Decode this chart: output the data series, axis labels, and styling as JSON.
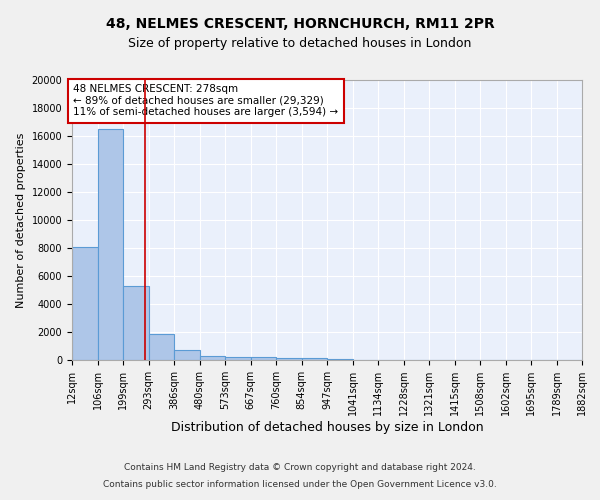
{
  "title1": "48, NELMES CRESCENT, HORNCHURCH, RM11 2PR",
  "title2": "Size of property relative to detached houses in London",
  "xlabel": "Distribution of detached houses by size in London",
  "ylabel": "Number of detached properties",
  "footnote1": "Contains HM Land Registry data © Crown copyright and database right 2024.",
  "footnote2": "Contains public sector information licensed under the Open Government Licence v3.0.",
  "bar_heights": [
    8100,
    16500,
    5300,
    1850,
    700,
    320,
    220,
    190,
    150,
    130,
    50,
    30,
    20,
    15,
    10,
    8,
    5,
    4,
    3,
    2
  ],
  "bin_edges": [
    12,
    106,
    199,
    293,
    386,
    480,
    573,
    667,
    760,
    854,
    947,
    1041,
    1134,
    1228,
    1321,
    1415,
    1508,
    1602,
    1695,
    1789,
    1882
  ],
  "x_tick_labels": [
    "12sqm",
    "106sqm",
    "199sqm",
    "293sqm",
    "386sqm",
    "480sqm",
    "573sqm",
    "667sqm",
    "760sqm",
    "854sqm",
    "947sqm",
    "1041sqm",
    "1134sqm",
    "1228sqm",
    "1321sqm",
    "1415sqm",
    "1508sqm",
    "1602sqm",
    "1695sqm",
    "1789sqm",
    "1882sqm"
  ],
  "bar_color": "#aec6e8",
  "bar_edge_color": "#5b9bd5",
  "red_line_x": 278,
  "annotation_line1": "48 NELMES CRESCENT: 278sqm",
  "annotation_line2": "← 89% of detached houses are smaller (29,329)",
  "annotation_line3": "11% of semi-detached houses are larger (3,594) →",
  "annotation_box_color": "#ffffff",
  "annotation_box_edge_color": "#cc0000",
  "ylim_max": 20000,
  "background_color": "#eaf0fb",
  "grid_color": "#ffffff",
  "fig_facecolor": "#f0f0f0",
  "title1_fontsize": 10,
  "title2_fontsize": 9,
  "ylabel_fontsize": 8,
  "xlabel_fontsize": 9,
  "tick_fontsize": 7,
  "annotation_fontsize": 7.5,
  "footnote_fontsize": 6.5,
  "yticks": [
    0,
    2000,
    4000,
    6000,
    8000,
    10000,
    12000,
    14000,
    16000,
    18000,
    20000
  ]
}
